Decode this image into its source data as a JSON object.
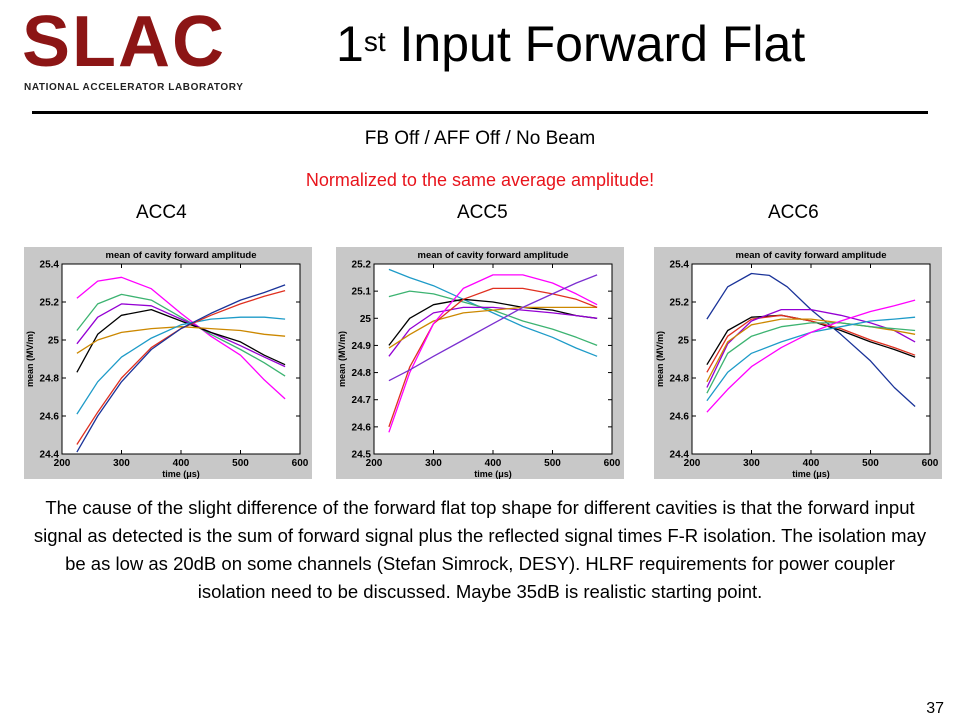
{
  "header": {
    "logo_text": "SLAC",
    "logo_subtext": "NATIONAL ACCELERATOR LABORATORY",
    "title_main": "Input Forward Flat",
    "title_ordinal": "1",
    "title_sup": "st"
  },
  "subtitle": "FB Off / AFF Off / No Beam",
  "note": "Normalized to the same average amplitude!",
  "panels": [
    {
      "label": "ACC4"
    },
    {
      "label": "ACC5"
    },
    {
      "label": "ACC6"
    }
  ],
  "paragraph": "The cause of the slight difference of the forward flat top shape for different cavities is that the forward input signal as detected is the sum of forward signal plus the reflected signal times F-R isolation.  The isolation may be as low as 20dB on some channels (Stefan Simrock, DESY).  HLRF requirements for power coupler isolation need to be discussed.  Maybe 35dB is realistic starting point.",
  "page_number": "37",
  "chart_data": [
    {
      "type": "line",
      "title": "mean of cavity forward amplitude",
      "xlabel": "time (μs)",
      "ylabel": "mean (MV/m)",
      "xlim": [
        200,
        600
      ],
      "ylim": [
        24.4,
        25.4
      ],
      "xticks": [
        200,
        300,
        400,
        500,
        600
      ],
      "yticks": [
        24.4,
        24.6,
        24.8,
        25,
        25.2,
        25.4
      ],
      "ytick_labels": [
        "24.4",
        "24.6",
        "24.8",
        "25",
        "25.2",
        "25.4"
      ],
      "series": [
        {
          "color": "#ff00ff",
          "x": [
            225,
            260,
            300,
            350,
            400,
            450,
            500,
            540,
            575
          ],
          "y": [
            25.22,
            25.31,
            25.33,
            25.27,
            25.14,
            25.02,
            24.92,
            24.79,
            24.69
          ]
        },
        {
          "color": "#3cb371",
          "x": [
            225,
            260,
            300,
            350,
            400,
            450,
            500,
            540,
            575
          ],
          "y": [
            25.05,
            25.19,
            25.24,
            25.21,
            25.12,
            25.03,
            24.95,
            24.88,
            24.81
          ]
        },
        {
          "color": "#9400d3",
          "x": [
            225,
            260,
            300,
            350,
            400,
            450,
            500,
            540,
            575
          ],
          "y": [
            24.98,
            25.12,
            25.19,
            25.18,
            25.11,
            25.04,
            24.97,
            24.91,
            24.86
          ]
        },
        {
          "color": "#000000",
          "x": [
            225,
            260,
            300,
            350,
            400,
            450,
            500,
            540,
            575
          ],
          "y": [
            24.83,
            25.03,
            25.13,
            25.16,
            25.1,
            25.04,
            24.99,
            24.92,
            24.87
          ]
        },
        {
          "color": "#cc8800",
          "x": [
            225,
            260,
            300,
            350,
            400,
            450,
            500,
            540,
            575
          ],
          "y": [
            24.93,
            25.0,
            25.04,
            25.06,
            25.07,
            25.06,
            25.05,
            25.03,
            25.02
          ]
        },
        {
          "color": "#1e9bc8",
          "x": [
            225,
            260,
            300,
            350,
            400,
            450,
            500,
            540,
            575
          ],
          "y": [
            24.61,
            24.78,
            24.91,
            25.01,
            25.08,
            25.11,
            25.12,
            25.12,
            25.11
          ]
        },
        {
          "color": "#e03020",
          "x": [
            225,
            260,
            300,
            350,
            400,
            450,
            500,
            540,
            575
          ],
          "y": [
            24.45,
            24.62,
            24.8,
            24.96,
            25.06,
            25.13,
            25.19,
            25.23,
            25.26
          ]
        },
        {
          "color": "#1a3399",
          "x": [
            225,
            260,
            300,
            350,
            400,
            450,
            500,
            540,
            575
          ],
          "y": [
            24.41,
            24.6,
            24.78,
            24.95,
            25.06,
            25.14,
            25.21,
            25.25,
            25.29
          ]
        }
      ]
    },
    {
      "type": "line",
      "title": "mean of cavity forward amplitude",
      "xlabel": "time (μs)",
      "ylabel": "mean (MV/m)",
      "xlim": [
        200,
        600
      ],
      "ylim": [
        24.5,
        25.2
      ],
      "xticks": [
        200,
        300,
        400,
        500,
        600
      ],
      "yticks": [
        24.5,
        24.6,
        24.7,
        24.8,
        24.9,
        25,
        25.1,
        25.2
      ],
      "ytick_labels": [
        "24.5",
        "24.6",
        "24.7",
        "24.8",
        "24.9",
        "25",
        "25.1",
        "25.2"
      ],
      "series": [
        {
          "color": "#1e9bc8",
          "x": [
            225,
            260,
            300,
            350,
            400,
            450,
            500,
            540,
            575
          ],
          "y": [
            25.18,
            25.15,
            25.12,
            25.07,
            25.02,
            24.97,
            24.93,
            24.89,
            24.86
          ]
        },
        {
          "color": "#3cb371",
          "x": [
            225,
            260,
            300,
            350,
            400,
            450,
            500,
            540,
            575
          ],
          "y": [
            25.08,
            25.1,
            25.09,
            25.06,
            25.03,
            24.99,
            24.96,
            24.93,
            24.9
          ]
        },
        {
          "color": "#000000",
          "x": [
            225,
            260,
            300,
            350,
            400,
            450,
            500,
            540,
            575
          ],
          "y": [
            24.9,
            25.0,
            25.05,
            25.07,
            25.06,
            25.04,
            25.03,
            25.01,
            25.0
          ]
        },
        {
          "color": "#9400d3",
          "x": [
            225,
            260,
            300,
            350,
            400,
            450,
            500,
            540,
            575
          ],
          "y": [
            24.86,
            24.96,
            25.02,
            25.04,
            25.04,
            25.03,
            25.02,
            25.01,
            25.0
          ]
        },
        {
          "color": "#cc8800",
          "x": [
            225,
            260,
            300,
            350,
            400,
            450,
            500,
            540,
            575
          ],
          "y": [
            24.89,
            24.94,
            24.99,
            25.02,
            25.03,
            25.04,
            25.04,
            25.04,
            25.04
          ]
        },
        {
          "color": "#e03020",
          "x": [
            225,
            260,
            300,
            350,
            400,
            450,
            500,
            540,
            575
          ],
          "y": [
            24.6,
            24.82,
            24.98,
            25.07,
            25.11,
            25.11,
            25.09,
            25.07,
            25.04
          ]
        },
        {
          "color": "#ff00ff",
          "x": [
            225,
            260,
            300,
            350,
            400,
            450,
            500,
            540,
            575
          ],
          "y": [
            24.58,
            24.8,
            24.98,
            25.11,
            25.16,
            25.16,
            25.13,
            25.09,
            25.05
          ]
        },
        {
          "color": "#7b2fd0",
          "x": [
            225,
            260,
            300,
            350,
            400,
            450,
            500,
            540,
            575
          ],
          "y": [
            24.77,
            24.81,
            24.86,
            24.92,
            24.98,
            25.04,
            25.09,
            25.13,
            25.16
          ]
        }
      ]
    },
    {
      "type": "line",
      "title": "mean of cavity forward amplitude",
      "xlabel": "time (μs)",
      "ylabel": "mean (MV/m)",
      "xlim": [
        200,
        600
      ],
      "ylim": [
        24.4,
        25.4
      ],
      "xticks": [
        200,
        300,
        400,
        500,
        600
      ],
      "yticks": [
        24.4,
        24.6,
        24.8,
        25,
        25.2,
        25.4
      ],
      "ytick_labels": [
        "24.4",
        "24.6",
        "24.8",
        "25",
        "25.2",
        "25.4"
      ],
      "series": [
        {
          "color": "#1a3399",
          "x": [
            225,
            260,
            300,
            330,
            360,
            400,
            450,
            500,
            540,
            575
          ],
          "y": [
            25.11,
            25.28,
            25.35,
            25.34,
            25.28,
            25.16,
            25.03,
            24.89,
            24.75,
            24.65
          ]
        },
        {
          "color": "#000000",
          "x": [
            225,
            260,
            300,
            350,
            400,
            450,
            500,
            540,
            575
          ],
          "y": [
            24.87,
            25.05,
            25.12,
            25.13,
            25.1,
            25.05,
            24.99,
            24.95,
            24.91
          ]
        },
        {
          "color": "#e03020",
          "x": [
            225,
            260,
            300,
            350,
            400,
            450,
            500,
            540,
            575
          ],
          "y": [
            24.83,
            25.02,
            25.11,
            25.13,
            25.1,
            25.06,
            25.0,
            24.96,
            24.92
          ]
        },
        {
          "color": "#9400d3",
          "x": [
            225,
            260,
            300,
            350,
            400,
            450,
            500,
            540,
            575
          ],
          "y": [
            24.75,
            24.98,
            25.1,
            25.16,
            25.16,
            25.13,
            25.09,
            25.05,
            24.99
          ]
        },
        {
          "color": "#cc8800",
          "x": [
            225,
            260,
            300,
            350,
            400,
            450,
            500,
            540,
            575
          ],
          "y": [
            24.78,
            24.99,
            25.08,
            25.11,
            25.11,
            25.09,
            25.07,
            25.05,
            25.03
          ]
        },
        {
          "color": "#3cb371",
          "x": [
            225,
            260,
            300,
            350,
            400,
            450,
            500,
            540,
            575
          ],
          "y": [
            24.72,
            24.93,
            25.02,
            25.07,
            25.09,
            25.09,
            25.07,
            25.06,
            25.05
          ]
        },
        {
          "color": "#1e9bc8",
          "x": [
            225,
            260,
            300,
            350,
            400,
            450,
            500,
            540,
            575
          ],
          "y": [
            24.68,
            24.83,
            24.93,
            24.99,
            25.04,
            25.07,
            25.1,
            25.11,
            25.12
          ]
        },
        {
          "color": "#ff00ff",
          "x": [
            225,
            260,
            300,
            350,
            400,
            450,
            500,
            540,
            575
          ],
          "y": [
            24.62,
            24.74,
            24.86,
            24.96,
            25.04,
            25.1,
            25.15,
            25.18,
            25.21
          ]
        }
      ]
    }
  ]
}
